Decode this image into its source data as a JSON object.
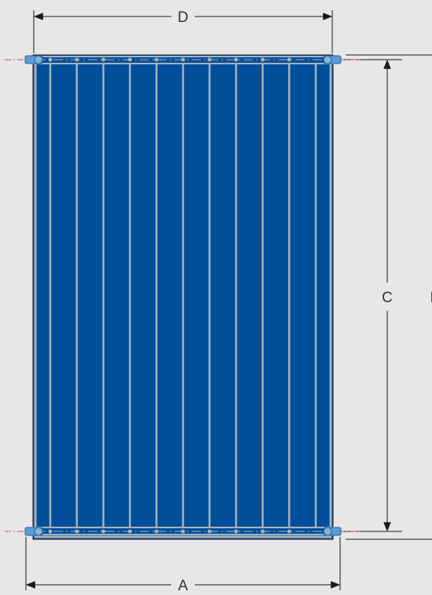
{
  "drawing": {
    "background_color": "#e7e7e7",
    "panel_color": "#004f9a",
    "frame_color": "#aab1b9",
    "fitting_color": "#5b9bd5",
    "line_color": "#1a1a1a",
    "centerline_color": "#c05060",
    "riser_tube_count": 10
  },
  "dimensions": {
    "overall_width": "A",
    "overall_height": "B",
    "connection_spacing": "C",
    "panel_width": "D"
  }
}
